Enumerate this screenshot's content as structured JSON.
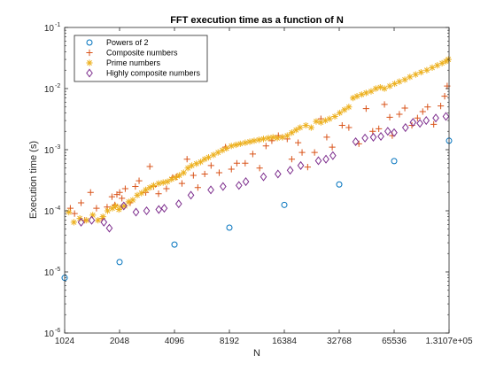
{
  "chart_data": {
    "type": "scatter",
    "title": "FFT execution time as a function of N",
    "xlabel": "N",
    "ylabel": "Execution time (s)",
    "xscale": "log2",
    "yscale": "log10",
    "xlim": [
      1024,
      131072
    ],
    "ylim": [
      1e-06,
      0.1
    ],
    "x_ticks": [
      1024,
      2048,
      4096,
      8192,
      16384,
      32768,
      65536,
      131072
    ],
    "x_tick_labels": [
      "1024",
      "2048",
      "4096",
      "8192",
      "16384",
      "32768",
      "65536",
      "1.3107e+05"
    ],
    "y_ticks": [
      1e-06,
      1e-05,
      0.0001,
      0.001,
      0.01,
      0.1
    ],
    "y_tick_labels": [
      {
        "base": "10",
        "exp": "-6"
      },
      {
        "base": "10",
        "exp": "-5"
      },
      {
        "base": "10",
        "exp": "-4"
      },
      {
        "base": "10",
        "exp": "-3"
      },
      {
        "base": "10",
        "exp": "-2"
      },
      {
        "base": "10",
        "exp": "-1"
      }
    ],
    "grid": false,
    "legend_position": "top-left",
    "series": [
      {
        "name": "Powers of 2",
        "marker": "circle",
        "color": "#0072BD",
        "points": [
          [
            1024,
            8e-06
          ],
          [
            2048,
            1.45e-05
          ],
          [
            4096,
            2.8e-05
          ],
          [
            8192,
            5.3e-05
          ],
          [
            16384,
            0.000125
          ],
          [
            32768,
            0.00027
          ],
          [
            65536,
            0.00065
          ],
          [
            131072,
            0.0014
          ]
        ]
      },
      {
        "name": "Composite numbers",
        "marker": "plus",
        "color": "#D95319",
        "points": [
          [
            1100,
            0.00011
          ],
          [
            1160,
            9e-05
          ],
          [
            1260,
            0.000135
          ],
          [
            1320,
            7e-05
          ],
          [
            1420,
            0.0002
          ],
          [
            1530,
            0.00011
          ],
          [
            1640,
            7.5e-05
          ],
          [
            1750,
            0.000115
          ],
          [
            1860,
            0.00017
          ],
          [
            1930,
            0.000125
          ],
          [
            1980,
            0.000185
          ],
          [
            2050,
            0.0002
          ],
          [
            2110,
            0.00016
          ],
          [
            2200,
            0.00023
          ],
          [
            2340,
            0.000135
          ],
          [
            2500,
            0.00025
          ],
          [
            2620,
            0.00031
          ],
          [
            2850,
            0.0002
          ],
          [
            3000,
            0.00053
          ],
          [
            3150,
            0.00025
          ],
          [
            3350,
            0.00019
          ],
          [
            3700,
            0.00023
          ],
          [
            4000,
            0.00035
          ],
          [
            4200,
            0.00036
          ],
          [
            4500,
            0.00028
          ],
          [
            4800,
            0.0007
          ],
          [
            5200,
            0.00038
          ],
          [
            5500,
            0.00024
          ],
          [
            6000,
            0.0004
          ],
          [
            6500,
            0.00055
          ],
          [
            7200,
            0.00042
          ],
          [
            7800,
            0.0011
          ],
          [
            8400,
            0.00048
          ],
          [
            9000,
            0.0006
          ],
          [
            10000,
            0.0006
          ],
          [
            11000,
            0.00085
          ],
          [
            12000,
            0.0005
          ],
          [
            13000,
            0.00115
          ],
          [
            14000,
            0.0014
          ],
          [
            15200,
            0.0017
          ],
          [
            16000,
            0.0016
          ],
          [
            17000,
            0.0015
          ],
          [
            18000,
            0.0007
          ],
          [
            19500,
            0.0013
          ],
          [
            20500,
            0.0009
          ],
          [
            22000,
            0.00052
          ],
          [
            24000,
            0.0009
          ],
          [
            26000,
            0.0032
          ],
          [
            28000,
            0.0016
          ],
          [
            30000,
            0.0011
          ],
          [
            34000,
            0.0025
          ],
          [
            37000,
            0.0023
          ],
          [
            42000,
            0.00125
          ],
          [
            46000,
            0.0047
          ],
          [
            50000,
            0.002
          ],
          [
            54000,
            0.0022
          ],
          [
            58000,
            0.0055
          ],
          [
            62000,
            0.0034
          ],
          [
            64000,
            0.0017
          ],
          [
            70000,
            0.0038
          ],
          [
            75000,
            0.0048
          ],
          [
            82000,
            0.0025
          ],
          [
            88000,
            0.0033
          ],
          [
            94000,
            0.0042
          ],
          [
            100000,
            0.005
          ],
          [
            108000,
            0.0026
          ],
          [
            118000,
            0.0052
          ],
          [
            124000,
            0.0075
          ],
          [
            128000,
            0.011
          ]
        ]
      },
      {
        "name": "Prime numbers",
        "marker": "asterisk",
        "color": "#EDB120",
        "points": [
          [
            1080,
            9.5e-05
          ],
          [
            1150,
            6.5e-05
          ],
          [
            1240,
            7.5e-05
          ],
          [
            1350,
            7e-05
          ],
          [
            1460,
            8.5e-05
          ],
          [
            1560,
            7e-05
          ],
          [
            1660,
            8e-05
          ],
          [
            1760,
            0.0001
          ],
          [
            1870,
            0.00011
          ],
          [
            1950,
            0.00012
          ],
          [
            2030,
            0.000105
          ],
          [
            2100,
            0.000115
          ],
          [
            2190,
            0.00012
          ],
          [
            2300,
            0.00014
          ],
          [
            2420,
            0.00015
          ],
          [
            2560,
            0.00018
          ],
          [
            2700,
            0.000195
          ],
          [
            2850,
            0.00022
          ],
          [
            3000,
            0.00024
          ],
          [
            3150,
            0.00026
          ],
          [
            3350,
            0.00028
          ],
          [
            3550,
            0.00029
          ],
          [
            3750,
            0.0003
          ],
          [
            3950,
            0.00033
          ],
          [
            4150,
            0.00035
          ],
          [
            4350,
            0.00038
          ],
          [
            4600,
            0.00042
          ],
          [
            4850,
            0.0005
          ],
          [
            5100,
            0.00055
          ],
          [
            5400,
            0.00059
          ],
          [
            5700,
            0.00063
          ],
          [
            6000,
            0.0007
          ],
          [
            6300,
            0.00075
          ],
          [
            6700,
            0.00082
          ],
          [
            7100,
            0.0009
          ],
          [
            7500,
            0.00098
          ],
          [
            7900,
            0.00105
          ],
          [
            8400,
            0.00115
          ],
          [
            8900,
            0.0012
          ],
          [
            9400,
            0.00125
          ],
          [
            10000,
            0.0013
          ],
          [
            10600,
            0.00135
          ],
          [
            11200,
            0.0014
          ],
          [
            11900,
            0.00145
          ],
          [
            12600,
            0.0015
          ],
          [
            13400,
            0.00155
          ],
          [
            14200,
            0.0016
          ],
          [
            15000,
            0.00155
          ],
          [
            16000,
            0.0016
          ],
          [
            17000,
            0.0017
          ],
          [
            18000,
            0.0019
          ],
          [
            19000,
            0.0021
          ],
          [
            20000,
            0.0023
          ],
          [
            21500,
            0.0025
          ],
          [
            23000,
            0.0023
          ],
          [
            24500,
            0.0029
          ],
          [
            26000,
            0.0028
          ],
          [
            27500,
            0.003
          ],
          [
            29000,
            0.0032
          ],
          [
            31000,
            0.0035
          ],
          [
            33000,
            0.004
          ],
          [
            35000,
            0.0045
          ],
          [
            37000,
            0.005
          ],
          [
            39000,
            0.007
          ],
          [
            41000,
            0.0075
          ],
          [
            43500,
            0.008
          ],
          [
            46000,
            0.0085
          ],
          [
            49000,
            0.009
          ],
          [
            52000,
            0.01
          ],
          [
            55000,
            0.0105
          ],
          [
            58000,
            0.01
          ],
          [
            62000,
            0.011
          ],
          [
            66000,
            0.012
          ],
          [
            70000,
            0.013
          ],
          [
            75000,
            0.014
          ],
          [
            80000,
            0.0155
          ],
          [
            86000,
            0.017
          ],
          [
            92000,
            0.0185
          ],
          [
            99000,
            0.02
          ],
          [
            106000,
            0.022
          ],
          [
            113000,
            0.024
          ],
          [
            120000,
            0.026
          ],
          [
            126000,
            0.028
          ],
          [
            130000,
            0.03
          ]
        ]
      },
      {
        "name": "Highly composite numbers",
        "marker": "diamond",
        "color": "#7E2F8E",
        "points": [
          [
            1260,
            6.5e-05
          ],
          [
            1440,
            7e-05
          ],
          [
            1680,
            6.5e-05
          ],
          [
            1800,
            5.2e-05
          ],
          [
            2160,
            0.00012
          ],
          [
            2520,
            9.5e-05
          ],
          [
            2880,
            0.0001
          ],
          [
            3360,
            0.000105
          ],
          [
            3600,
            0.00011
          ],
          [
            4320,
            0.00013
          ],
          [
            5040,
            0.00018
          ],
          [
            6480,
            0.00022
          ],
          [
            7560,
            0.00025
          ],
          [
            9240,
            0.00026
          ],
          [
            10080,
            0.0003
          ],
          [
            12600,
            0.00036
          ],
          [
            15120,
            0.0004
          ],
          [
            17640,
            0.00046
          ],
          [
            20160,
            0.00055
          ],
          [
            25200,
            0.00066
          ],
          [
            27720,
            0.0007
          ],
          [
            30240,
            0.0008
          ],
          [
            40320,
            0.00135
          ],
          [
            45360,
            0.00155
          ],
          [
            50400,
            0.0016
          ],
          [
            55440,
            0.00165
          ],
          [
            60480,
            0.002
          ],
          [
            65520,
            0.0019
          ],
          [
            75600,
            0.0023
          ],
          [
            83160,
            0.0028
          ],
          [
            90720,
            0.0027
          ],
          [
            98280,
            0.003
          ],
          [
            110880,
            0.0033
          ],
          [
            126000,
            0.0035
          ]
        ]
      }
    ]
  },
  "colors": {
    "axis": "#262626",
    "background": "#ffffff"
  }
}
